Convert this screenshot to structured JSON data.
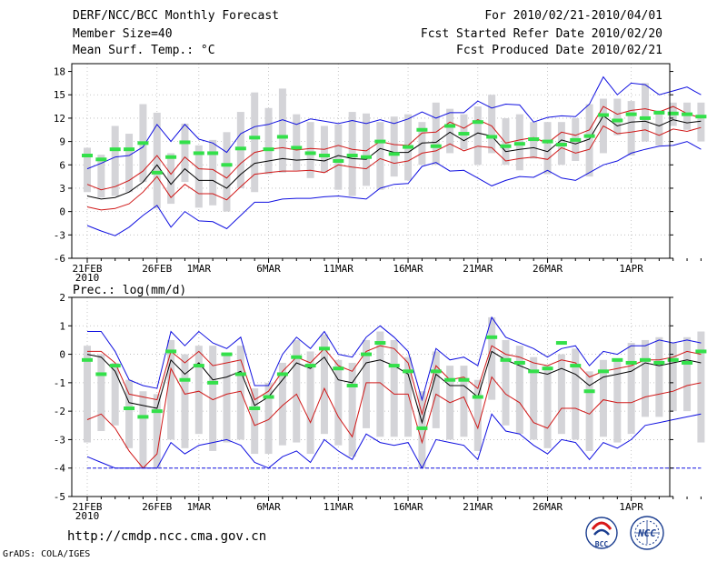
{
  "header": {
    "title": "DERF/NCC/BCC Monthly Forecast",
    "member_size": "Member Size=40",
    "variable_top": "Mean Surf. Temp.: °C",
    "period": "For 2010/02/21-2010/04/01",
    "fcst_started": "Fcst Started Refer Date 2010/02/20",
    "fcst_produced": "Fcst Produced Date 2010/02/21"
  },
  "footer": {
    "url": "http://cmdp.ncc.cma.gov.cn",
    "credit": "GrADS: COLA/IGES",
    "logo_bcc": "BCC",
    "logo_ncc": "NCC"
  },
  "colors": {
    "box": "#d4d4d8",
    "green": "#33e04a",
    "mean": "#000000",
    "inner": "#d01818",
    "outer": "#1010e0",
    "floor": "#1010e0"
  },
  "chart_data": [
    {
      "type": "line",
      "title": "Mean Surf. Temp.: °C",
      "x_tick_labels": [
        "21FEB",
        "26FEB",
        "1MAR",
        "6MAR",
        "11MAR",
        "16MAR",
        "21MAR",
        "26MAR",
        "1APR"
      ],
      "x_tick_days": [
        0,
        5,
        8,
        13,
        18,
        23,
        28,
        33,
        39
      ],
      "x_year_label": "2010",
      "ylim": [
        -6,
        19
      ],
      "yticks": [
        -6,
        -3,
        0,
        3,
        6,
        9,
        12,
        15,
        18
      ],
      "ytick_labels": [
        "-6",
        "-3",
        "0",
        "3",
        "6",
        "9",
        "12",
        "15",
        "18"
      ],
      "series": [
        {
          "name": "ensemble_mean",
          "values": [
            2.0,
            1.6,
            1.8,
            2.5,
            3.8,
            6.0,
            3.5,
            5.5,
            4.0,
            4.0,
            3.0,
            4.8,
            6.2,
            6.5,
            6.8,
            6.6,
            6.7,
            6.5,
            7.2,
            6.8,
            6.7,
            8.1,
            7.6,
            7.6,
            8.8,
            8.9,
            10.2,
            9.1,
            10.1,
            9.7,
            7.7,
            8.0,
            8.2,
            7.7,
            9.2,
            8.7,
            9.3,
            12.3,
            11.0,
            11.5,
            11.6,
            11.0,
            11.8,
            11.4,
            11.6
          ]
        },
        {
          "name": "upper_inner",
          "values": [
            3.5,
            2.8,
            3.2,
            4.0,
            5.2,
            7.2,
            4.8,
            7.0,
            5.5,
            5.4,
            4.3,
            6.2,
            7.6,
            8.0,
            8.2,
            7.9,
            8.1,
            8.0,
            8.5,
            8.0,
            7.8,
            9.0,
            8.6,
            8.5,
            10.1,
            10.2,
            11.5,
            10.7,
            11.8,
            11.0,
            8.8,
            9.2,
            9.5,
            8.8,
            10.2,
            9.8,
            10.5,
            13.5,
            12.5,
            13.0,
            13.2,
            12.8,
            13.5,
            12.6,
            12.0
          ]
        },
        {
          "name": "lower_inner",
          "values": [
            0.6,
            0.2,
            0.4,
            1.0,
            2.5,
            4.5,
            1.8,
            3.5,
            2.3,
            2.3,
            1.5,
            3.2,
            4.8,
            5.0,
            5.2,
            5.2,
            5.3,
            5.0,
            6.0,
            5.7,
            5.5,
            6.8,
            6.2,
            6.5,
            7.5,
            7.8,
            8.7,
            7.8,
            8.4,
            8.2,
            6.5,
            6.8,
            7.0,
            6.7,
            8.2,
            7.5,
            8.0,
            11.0,
            10.0,
            10.2,
            10.5,
            9.8,
            10.6,
            10.3,
            10.8
          ]
        },
        {
          "name": "upper_outer",
          "values": [
            5.5,
            6.2,
            7.0,
            7.2,
            8.3,
            11.2,
            9.0,
            11.2,
            9.3,
            8.8,
            7.6,
            10.0,
            10.9,
            11.2,
            11.8,
            11.2,
            11.9,
            11.6,
            11.3,
            11.7,
            11.3,
            11.8,
            11.3,
            11.9,
            12.8,
            12.0,
            12.7,
            12.7,
            14.2,
            13.3,
            13.8,
            13.7,
            11.5,
            12.1,
            12.3,
            12.2,
            13.8,
            17.3,
            15.0,
            16.5,
            16.3,
            15.0,
            15.5,
            16.0,
            15.0
          ]
        },
        {
          "name": "lower_outer",
          "values": [
            -1.8,
            -2.5,
            -3.1,
            -2.0,
            -0.5,
            0.8,
            -2.0,
            0.0,
            -1.2,
            -1.3,
            -2.2,
            -0.5,
            1.2,
            1.2,
            1.6,
            1.7,
            1.7,
            1.9,
            2.0,
            1.8,
            1.6,
            3.0,
            3.5,
            3.6,
            5.8,
            6.3,
            5.2,
            5.3,
            4.3,
            3.3,
            4.0,
            4.5,
            4.4,
            5.3,
            4.3,
            4.0,
            5.0,
            6.0,
            6.5,
            7.5,
            8.0,
            8.4,
            8.5,
            9.0,
            8.0
          ]
        }
      ],
      "box_ranges": [
        [
          2.5,
          8.2
        ],
        [
          1.8,
          7.3
        ],
        [
          2.0,
          11.0
        ],
        [
          2.5,
          10.0
        ],
        [
          3.8,
          13.8
        ],
        [
          0.4,
          12.7
        ],
        [
          1.0,
          7.5
        ],
        [
          3.8,
          11.3
        ],
        [
          0.5,
          8.5
        ],
        [
          0.8,
          9.2
        ],
        [
          0.0,
          10.2
        ],
        [
          3.0,
          12.8
        ],
        [
          2.5,
          15.3
        ],
        [
          4.8,
          13.3
        ],
        [
          5.0,
          15.8
        ],
        [
          5.3,
          12.5
        ],
        [
          4.3,
          11.5
        ],
        [
          5.0,
          11.0
        ],
        [
          2.8,
          11.2
        ],
        [
          2.0,
          12.8
        ],
        [
          3.3,
          12.6
        ],
        [
          2.8,
          11.5
        ],
        [
          4.5,
          12.2
        ],
        [
          4.0,
          12.5
        ],
        [
          6.0,
          11.5
        ],
        [
          6.0,
          14.0
        ],
        [
          7.5,
          13.2
        ],
        [
          8.0,
          12.5
        ],
        [
          6.0,
          13.5
        ],
        [
          7.5,
          15.0
        ],
        [
          6.0,
          12.0
        ],
        [
          5.3,
          12.5
        ],
        [
          6.8,
          11.5
        ],
        [
          4.8,
          11.5
        ],
        [
          6.0,
          11.5
        ],
        [
          6.5,
          12.0
        ],
        [
          4.5,
          13.8
        ],
        [
          7.5,
          14.5
        ],
        [
          9.8,
          14.5
        ],
        [
          7.2,
          14.2
        ],
        [
          9.0,
          16.5
        ],
        [
          8.5,
          13.0
        ],
        [
          11.0,
          14.0
        ],
        [
          10.5,
          14.0
        ],
        [
          9.0,
          14.0
        ]
      ],
      "green_marks": [
        7.2,
        6.7,
        8.0,
        8.0,
        8.8,
        5.0,
        7.0,
        8.9,
        7.5,
        7.5,
        6.0,
        8.1,
        9.5,
        8.0,
        9.6,
        8.2,
        7.5,
        7.2,
        6.5,
        7.2,
        7.0,
        9.0,
        7.4,
        8.3,
        10.5,
        8.4,
        11.0,
        10.0,
        11.5,
        9.6,
        8.4,
        8.7,
        9.3,
        9.0,
        8.6,
        9.2,
        9.7,
        12.4,
        11.7,
        12.5,
        12.0,
        12.7,
        12.6,
        12.5,
        12.2
      ]
    },
    {
      "type": "line",
      "title": "Prec.: log(mm/d)",
      "x_tick_labels": [
        "21FEB",
        "26FEB",
        "1MAR",
        "6MAR",
        "11MAR",
        "16MAR",
        "21MAR",
        "26MAR",
        "1APR"
      ],
      "x_tick_days": [
        0,
        5,
        8,
        13,
        18,
        23,
        28,
        33,
        39
      ],
      "x_year_label": "2010",
      "ylim": [
        -5,
        2
      ],
      "yticks": [
        -5,
        -4,
        -3,
        -2,
        -1,
        0,
        1,
        2
      ],
      "ytick_labels": [
        "-5",
        "-4",
        "-3",
        "-2",
        "-1",
        "0",
        "1",
        "2"
      ],
      "floor_value": -4,
      "series": [
        {
          "name": "ensemble_mean",
          "values": [
            0.0,
            -0.1,
            -0.6,
            -1.7,
            -1.8,
            -1.9,
            -0.2,
            -0.7,
            -0.3,
            -0.9,
            -0.8,
            -0.6,
            -1.8,
            -1.5,
            -0.9,
            -0.3,
            -0.5,
            -0.1,
            -0.9,
            -1.0,
            -0.3,
            -0.2,
            -0.4,
            -0.7,
            -2.4,
            -0.7,
            -1.1,
            -1.1,
            -1.5,
            0.1,
            -0.2,
            -0.4,
            -0.6,
            -0.7,
            -0.5,
            -0.7,
            -1.1,
            -0.8,
            -0.7,
            -0.6,
            -0.3,
            -0.4,
            -0.3,
            -0.2,
            -0.3
          ]
        },
        {
          "name": "upper_inner",
          "values": [
            0.1,
            0.1,
            -0.3,
            -1.4,
            -1.5,
            -1.6,
            0.1,
            -0.3,
            0.1,
            -0.4,
            -0.3,
            -0.2,
            -1.6,
            -1.3,
            -0.6,
            -0.1,
            -0.3,
            0.2,
            -0.4,
            -0.6,
            0.1,
            0.3,
            0.2,
            -0.3,
            -2.1,
            -0.4,
            -0.9,
            -0.8,
            -1.2,
            0.3,
            0.0,
            -0.1,
            -0.3,
            -0.4,
            -0.2,
            -0.3,
            -0.8,
            -0.6,
            -0.5,
            -0.4,
            -0.2,
            -0.2,
            -0.1,
            0.1,
            0.0
          ]
        },
        {
          "name": "lower_inner",
          "values": [
            -2.3,
            -2.1,
            -2.6,
            -3.4,
            -4.0,
            -3.5,
            -0.5,
            -1.4,
            -1.3,
            -1.6,
            -1.4,
            -1.3,
            -2.5,
            -2.3,
            -1.8,
            -1.4,
            -2.4,
            -1.2,
            -2.2,
            -2.9,
            -1.0,
            -1.0,
            -1.4,
            -1.4,
            -3.1,
            -1.4,
            -1.7,
            -1.5,
            -2.6,
            -0.8,
            -1.4,
            -1.7,
            -2.4,
            -2.6,
            -1.9,
            -1.9,
            -2.1,
            -1.6,
            -1.7,
            -1.7,
            -1.5,
            -1.4,
            -1.3,
            -1.1,
            -1.0
          ]
        },
        {
          "name": "upper_outer",
          "values": [
            0.8,
            0.8,
            0.1,
            -0.9,
            -1.1,
            -1.2,
            0.8,
            0.3,
            0.8,
            0.4,
            0.2,
            0.6,
            -1.1,
            -1.1,
            0.0,
            0.6,
            0.2,
            0.8,
            0.0,
            -0.1,
            0.6,
            1.0,
            0.6,
            0.1,
            -1.6,
            0.2,
            -0.2,
            -0.1,
            -0.4,
            1.3,
            0.6,
            0.4,
            0.2,
            -0.1,
            0.2,
            0.3,
            -0.4,
            0.1,
            0.0,
            0.3,
            0.3,
            0.5,
            0.4,
            0.5,
            0.4
          ]
        },
        {
          "name": "lower_outer",
          "values": [
            -3.6,
            -3.8,
            -4.0,
            -4.0,
            -4.0,
            -4.0,
            -3.1,
            -3.5,
            -3.2,
            -3.1,
            -3.0,
            -3.2,
            -3.8,
            -4.0,
            -3.6,
            -3.4,
            -3.8,
            -3.0,
            -3.4,
            -3.7,
            -2.8,
            -3.1,
            -3.2,
            -3.1,
            -4.0,
            -3.0,
            -3.1,
            -3.2,
            -3.7,
            -2.1,
            -2.7,
            -2.8,
            -3.2,
            -3.5,
            -3.0,
            -3.1,
            -3.7,
            -3.1,
            -3.3,
            -3.0,
            -2.5,
            -2.4,
            -2.3,
            -2.2,
            -2.1
          ]
        }
      ],
      "box_ranges": [
        [
          -3.1,
          0.3
        ],
        [
          -2.7,
          0.0
        ],
        [
          -2.5,
          -0.3
        ],
        [
          -3.3,
          -0.9
        ],
        [
          -4.0,
          -1.3
        ],
        [
          -4.0,
          -1.4
        ],
        [
          -3.0,
          0.5
        ],
        [
          -3.3,
          0.0
        ],
        [
          -2.8,
          0.3
        ],
        [
          -3.4,
          0.3
        ],
        [
          -3.1,
          0.0
        ],
        [
          -3.0,
          0.3
        ],
        [
          -3.5,
          -1.2
        ],
        [
          -3.5,
          -1.0
        ],
        [
          -3.2,
          -0.3
        ],
        [
          -3.1,
          0.5
        ],
        [
          -3.5,
          0.1
        ],
        [
          -2.8,
          0.7
        ],
        [
          -3.2,
          -0.2
        ],
        [
          -3.6,
          -0.3
        ],
        [
          -2.6,
          0.5
        ],
        [
          -2.9,
          0.8
        ],
        [
          -2.9,
          0.5
        ],
        [
          -2.9,
          -0.1
        ],
        [
          -4.0,
          -1.3
        ],
        [
          -2.6,
          0.1
        ],
        [
          -3.0,
          -0.4
        ],
        [
          -2.9,
          -0.4
        ],
        [
          -3.4,
          -0.9
        ],
        [
          -1.6,
          1.3
        ],
        [
          -2.5,
          0.5
        ],
        [
          -2.8,
          0.3
        ],
        [
          -3.0,
          -0.1
        ],
        [
          -3.3,
          -0.4
        ],
        [
          -2.8,
          0.0
        ],
        [
          -3.0,
          0.2
        ],
        [
          -3.4,
          -0.6
        ],
        [
          -2.9,
          -0.2
        ],
        [
          -3.1,
          -0.2
        ],
        [
          -2.8,
          0.4
        ],
        [
          -2.2,
          0.5
        ],
        [
          -2.2,
          0.6
        ],
        [
          -2.0,
          0.4
        ],
        [
          -2.0,
          0.6
        ],
        [
          -3.1,
          0.8
        ]
      ],
      "green_marks": [
        -0.2,
        -0.7,
        -0.4,
        -1.9,
        -2.2,
        -2.0,
        0.1,
        -0.9,
        -0.4,
        -1.0,
        0.0,
        -0.7,
        -1.9,
        -1.5,
        -0.7,
        -0.1,
        -0.4,
        0.2,
        -0.5,
        -1.1,
        0.0,
        0.4,
        -0.4,
        -0.6,
        -2.6,
        -0.6,
        -0.9,
        -0.9,
        -1.5,
        0.6,
        -0.2,
        -0.3,
        -0.6,
        -0.5,
        0.4,
        -0.4,
        -1.3,
        -0.6,
        -0.2,
        -0.3,
        -0.2,
        -0.3,
        -0.2,
        -0.3,
        0.1
      ]
    }
  ]
}
